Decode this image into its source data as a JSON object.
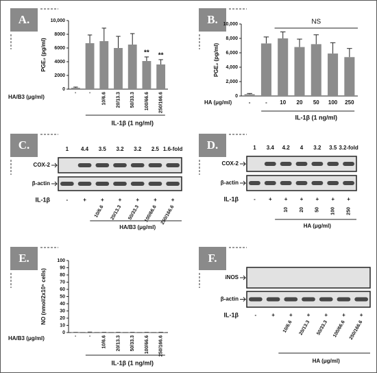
{
  "chart_data": [
    {
      "type": "bar",
      "label": "A.",
      "ylabel": "PGE₂ (pg/ml)",
      "group_label": "HA/B3 (μg/ml)",
      "xlabel": "IL-1β (1 ng/ml)",
      "categories": [
        "-",
        "-",
        "10/6.6",
        "20/13.3",
        "50/33.3",
        "100/66.6",
        "250/166.6"
      ],
      "values": [
        200,
        6700,
        7000,
        6000,
        6500,
        4100,
        3600
      ],
      "errors": [
        100,
        1200,
        1900,
        1700,
        1600,
        600,
        700
      ],
      "color": "#8c8c8c",
      "ylim": [
        0,
        10000
      ],
      "yticks": [
        0,
        2000,
        4000,
        6000,
        8000,
        {
          "value": 10000,
          "label": "10,000"
        }
      ],
      "annotations": [
        {
          "text": "**",
          "x": "100/66.6"
        },
        {
          "text": "**",
          "x": "250/166.6"
        }
      ]
    },
    {
      "type": "bar",
      "label": "B.",
      "ylabel": "PGE₂ (pg/ml)",
      "group_label": "HA (μg/ml)",
      "xlabel": "IL-1β (1 ng/ml)",
      "categories": [
        "-",
        "-",
        "10",
        "20",
        "50",
        "100",
        "250"
      ],
      "values": [
        250,
        7300,
        8000,
        6800,
        7200,
        5900,
        5400
      ],
      "errors": [
        100,
        900,
        900,
        1100,
        1300,
        1500,
        1200
      ],
      "color": "#8c8c8c",
      "ylim": [
        0,
        10000
      ],
      "yticks": [
        0,
        {
          "value": 2000,
          "label": "2,000"
        },
        {
          "value": 4000,
          "label": "4,000"
        },
        {
          "value": 6000,
          "label": "6,000"
        },
        {
          "value": 8000,
          "label": "8,000"
        },
        {
          "value": 10000,
          "label": "10,000"
        }
      ],
      "annotations": [
        {
          "text": "NS"
        }
      ]
    },
    {
      "type": "bar",
      "label": "E.",
      "ylabel": "NO (nmol/2x10⁵ cells)",
      "group_label": "HA/B3 (μg/ml)",
      "xlabel": "IL-1β (1 ng/ml)",
      "categories": [
        "-",
        "-",
        "10/6.6",
        "20/13.3",
        "50/33.3",
        "100/66.6",
        "250/166.6"
      ],
      "values": [
        0.2,
        0.5,
        0.3,
        0.3,
        0.3,
        0.3,
        0.4
      ],
      "errors": [
        0.1,
        0.2,
        0.1,
        0.1,
        0.1,
        0.1,
        0.1
      ],
      "color": "#8c8c8c",
      "ylim": [
        0,
        100
      ],
      "yticks": [
        0,
        10,
        20,
        30,
        40,
        50,
        60,
        70,
        80,
        90,
        100
      ]
    }
  ],
  "blots": [
    {
      "label": "C.",
      "fold": [
        "1",
        "4.4",
        "3.5",
        "3.2",
        "3.2",
        "2.5",
        "1.6-fold"
      ],
      "rows": [
        "COX-2",
        "β-actin"
      ],
      "treatment": "IL-1β",
      "signs": [
        "-",
        "+",
        "+",
        "+",
        "+",
        "+",
        "+"
      ],
      "doses": [
        "10/6.6",
        "20/13.3",
        "50/33.3",
        "100/66.6",
        "250/166.6"
      ],
      "dose_label": "HA/B3 (μg/ml)"
    },
    {
      "label": "D.",
      "fold": [
        "1",
        "3.4",
        "4.2",
        "4",
        "3.2",
        "3.5",
        "3.2-fold"
      ],
      "rows": [
        "COX-2",
        "β-actin"
      ],
      "treatment": "IL-1β",
      "signs": [
        "-",
        "+",
        "+",
        "+",
        "+",
        "+",
        "+"
      ],
      "doses": [
        "10",
        "20",
        "50",
        "100",
        "250"
      ],
      "dose_label": "HA (μg/ml)"
    },
    {
      "label": "F.",
      "rows": [
        "iNOS",
        "β-actin"
      ],
      "treatment": "IL-1β",
      "signs": [
        "-",
        "+",
        "+",
        "+",
        "+",
        "+",
        "+"
      ],
      "doses": [
        "10/6.6",
        "20/13.3",
        "50/33.3",
        "100/66.6",
        "250/166.6"
      ],
      "dose_label": "HA (μg/ml)"
    }
  ]
}
